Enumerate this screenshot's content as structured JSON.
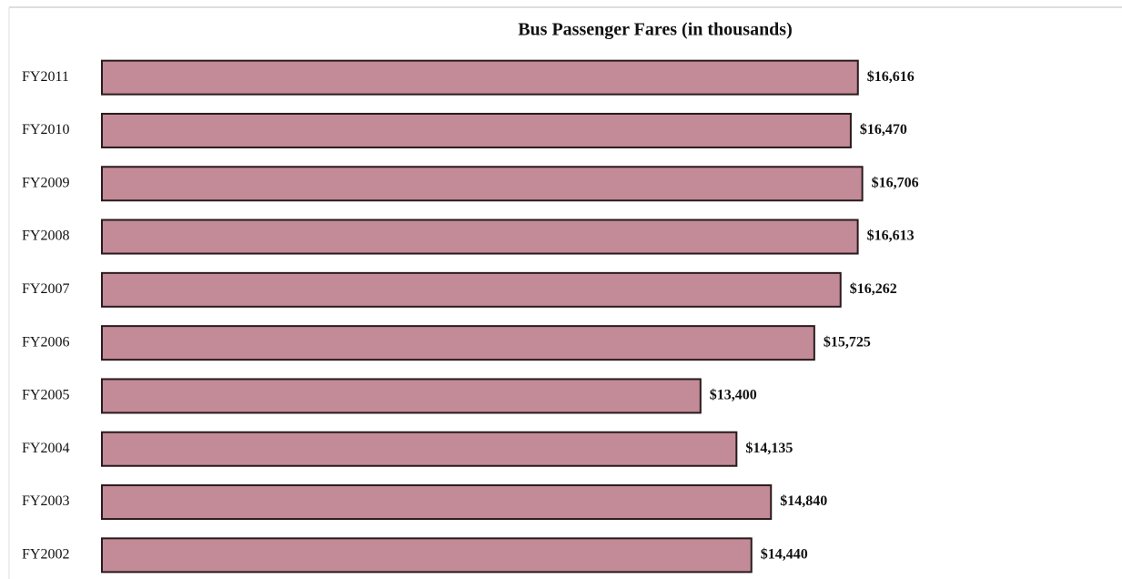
{
  "chart_data": {
    "type": "bar",
    "orientation": "horizontal",
    "title": "Bus Passenger Fares (in thousands)",
    "categories": [
      "FY2011",
      "FY2010",
      "FY2009",
      "FY2008",
      "FY2007",
      "FY2006",
      "FY2005",
      "FY2004",
      "FY2003",
      "FY2002"
    ],
    "values": [
      16616,
      16470,
      16706,
      16613,
      16262,
      15725,
      13400,
      14135,
      14840,
      14440
    ],
    "value_labels": [
      "$16,616",
      "$16,470",
      "$16,706",
      "$16,613",
      "$16,262",
      "$15,725",
      "$13,400",
      "$14,135",
      "$14,840",
      "$14,440"
    ],
    "color": "#c28b97",
    "xlim": [
      1170,
      19000
    ]
  }
}
